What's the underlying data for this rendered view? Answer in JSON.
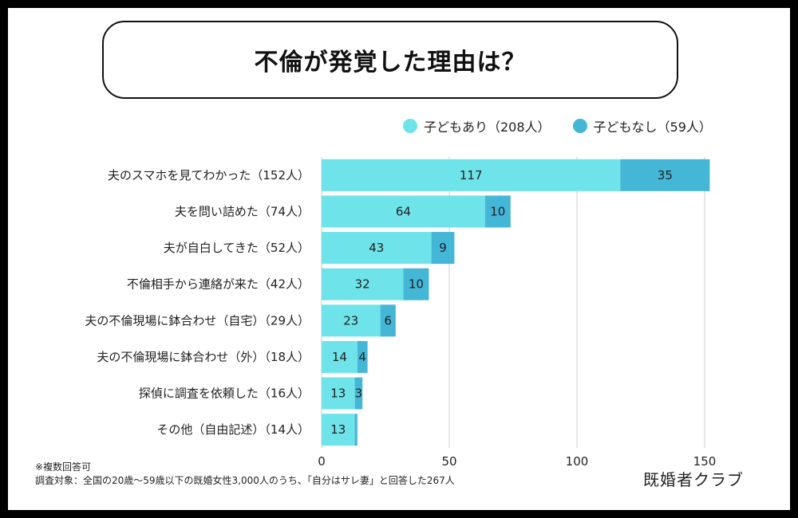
{
  "title": "不倫が発覚した理由は？",
  "colors": {
    "with_children": "#6ee3ea",
    "without_children": "#44b6d6",
    "grid": "#cccccc",
    "text": "#222222"
  },
  "legend": [
    {
      "label": "子どもあり（208人）",
      "color": "#6ee3ea"
    },
    {
      "label": "子どもなし（59人）",
      "color": "#44b6d6"
    }
  ],
  "chart_data": {
    "type": "bar",
    "orientation": "horizontal",
    "stacked": true,
    "categories": [
      "夫のスマホを見てわかった（152人）",
      "夫を問い詰めた（74人）",
      "夫が自白してきた（52人）",
      "不倫相手から連絡が来た（42人）",
      "夫の不倫現場に鉢合わせ（自宅）（29人）",
      "夫の不倫現場に鉢合わせ（外）（18人）",
      "探偵に調査を依頼した（16人）",
      "その他（自由記述）（14人）"
    ],
    "series": [
      {
        "name": "子どもあり（208人）",
        "values": [
          117,
          64,
          43,
          32,
          23,
          14,
          13,
          13
        ]
      },
      {
        "name": "子どもなし（59人）",
        "values": [
          35,
          10,
          9,
          10,
          6,
          4,
          3,
          1
        ]
      }
    ],
    "data_labels": [
      [
        "117",
        "64",
        "43",
        "32",
        "23",
        "14",
        "13",
        "13"
      ],
      [
        "35",
        "10",
        "9",
        "10",
        "6",
        "4",
        "3",
        ""
      ]
    ],
    "xlim": [
      0,
      150
    ],
    "xticks": [
      0,
      50,
      100,
      150
    ],
    "grid": true,
    "legend_position": "top-right"
  },
  "notes": {
    "line1": "※複数回答可",
    "line2": "調査対象：全国の20歳〜59歳以下の既婚女性3,000人のうち、「自分はサレ妻」と回答した267人"
  },
  "brand": "既婚者クラブ"
}
